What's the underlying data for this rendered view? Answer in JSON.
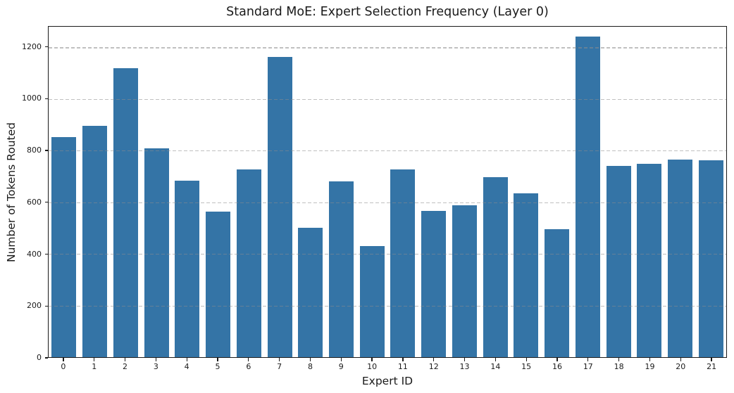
{
  "chart_data": {
    "type": "bar",
    "title": "Standard MoE: Expert Selection Frequency (Layer 0)",
    "xlabel": "Expert ID",
    "ylabel": "Number of Tokens Routed",
    "categories": [
      "0",
      "1",
      "2",
      "3",
      "4",
      "5",
      "6",
      "7",
      "8",
      "9",
      "10",
      "11",
      "12",
      "13",
      "14",
      "15",
      "16",
      "17",
      "18",
      "19",
      "20",
      "21"
    ],
    "values": [
      852,
      897,
      1119,
      810,
      684,
      565,
      727,
      1164,
      502,
      682,
      431,
      727,
      567,
      587,
      698,
      635,
      497,
      1241,
      741,
      749,
      766,
      762
    ],
    "ylim": [
      0,
      1280
    ],
    "yticks": [
      0,
      200,
      400,
      600,
      800,
      1000,
      1200
    ],
    "grid": "horizontal dashed, drawn over bars",
    "legend": "none",
    "colors": {
      "bar": "#3474A6",
      "gridline": "#BDBDBD",
      "spine": "#1A1A1A",
      "text": "#1A1A1A",
      "background": "#FFFFFF"
    }
  }
}
